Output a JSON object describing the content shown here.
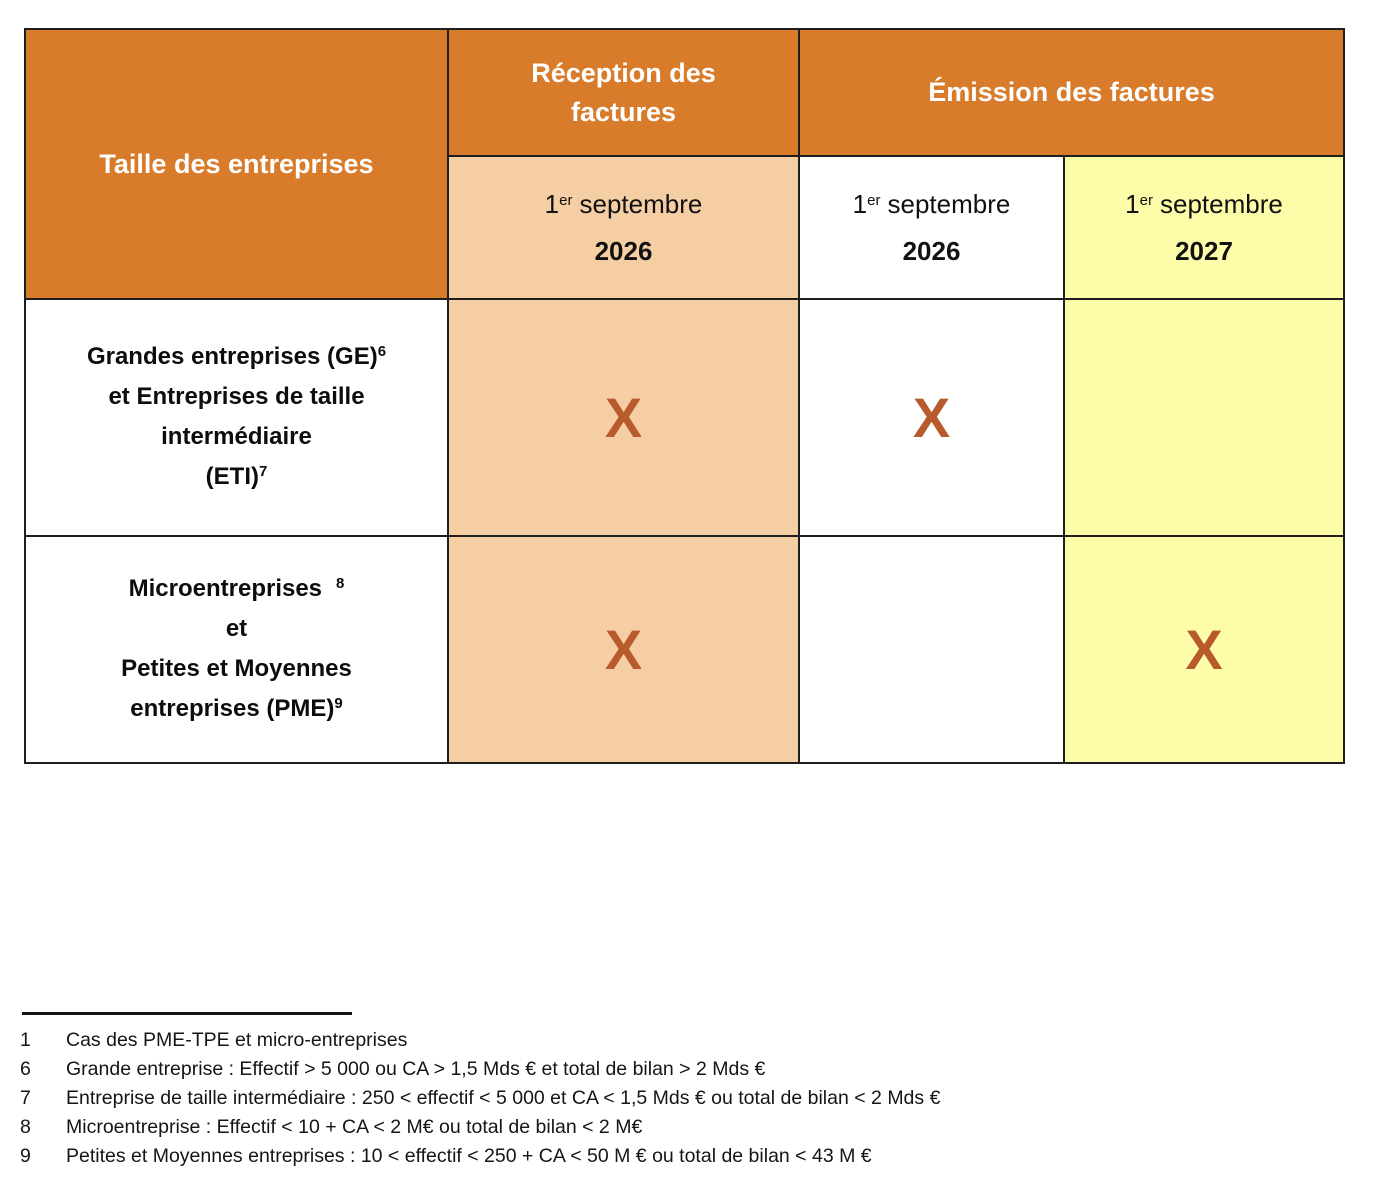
{
  "colors": {
    "header_orange": "#D87B2A",
    "reception_peach": "#F5CEA4",
    "emission_pale_yellow": "#FDFCA8",
    "x_mark_rust": "#B85B2C",
    "border_black": "#1e1e1e",
    "header_text_white": "#FFFFFF"
  },
  "table": {
    "corner_header": "Taille des entreprises",
    "groups": {
      "reception": "Réception des factures",
      "emission": "Émission des factures"
    },
    "subheaders": {
      "reception_2026": {
        "day": "1",
        "sup": "er",
        "month": "septembre",
        "year": "2026"
      },
      "emission_2026": {
        "day": "1",
        "sup": "er",
        "month": "septembre",
        "year": "2026"
      },
      "emission_2027": {
        "day": "1",
        "sup": "er",
        "month": "septembre",
        "year": "2027"
      }
    },
    "rows": [
      {
        "label_lines": [
          {
            "text": "Grandes entreprises (GE)",
            "sup": "6"
          },
          {
            "text": "et Entreprises de taille",
            "sup": ""
          },
          {
            "text": "intermédiaire",
            "sup": ""
          },
          {
            "text": "(ETI)",
            "sup": "7"
          }
        ],
        "cells": {
          "reception_2026": "X",
          "emission_2026": "X",
          "emission_2027": ""
        }
      },
      {
        "label_lines": [
          {
            "text": "Microentreprises",
            "sup": "8"
          },
          {
            "text": "et",
            "sup": ""
          },
          {
            "text": "Petites et Moyennes",
            "sup": ""
          },
          {
            "text": "entreprises (PME)",
            "sup": "9"
          }
        ],
        "cells": {
          "reception_2026": "X",
          "emission_2026": "",
          "emission_2027": "X"
        }
      }
    ]
  },
  "footnotes": [
    {
      "num": "1",
      "text": "Cas des PME-TPE et micro-entreprises"
    },
    {
      "num": "6",
      "text": "Grande entreprise : Effectif > 5 000 ou CA > 1,5 Mds € et total de bilan > 2 Mds €"
    },
    {
      "num": "7",
      "text": "Entreprise de taille intermédiaire : 250 < effectif < 5 000 et CA < 1,5 Mds € ou total de bilan < 2 Mds €"
    },
    {
      "num": "8",
      "text": "Microentreprise : Effectif < 10 + CA < 2 M€ ou total de bilan < 2 M€"
    },
    {
      "num": "9",
      "text": "Petites et Moyennes entreprises : 10 < effectif < 250 + CA < 50 M € ou total de bilan < 43 M €"
    }
  ]
}
